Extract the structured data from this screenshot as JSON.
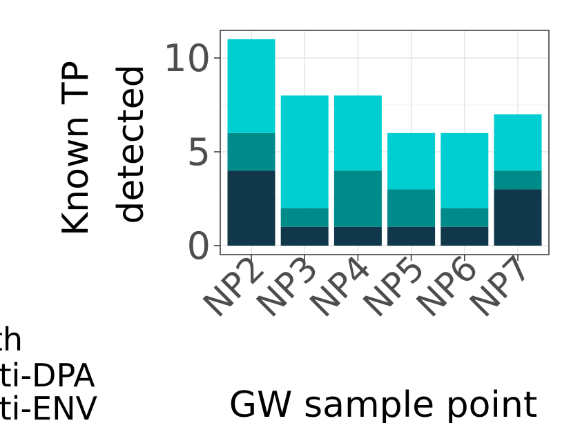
{
  "chart_data": {
    "type": "bar",
    "stacked": true,
    "categories": [
      "NP2",
      "NP3",
      "NP4",
      "NP5",
      "NP6",
      "NP7"
    ],
    "series": [
      {
        "name": "...th",
        "color": "#10384a",
        "values": [
          4,
          1,
          1,
          1,
          1,
          3
        ]
      },
      {
        "name": "...lti-DPA",
        "color": "#008b8b",
        "values": [
          2,
          1,
          3,
          2,
          1,
          1
        ]
      },
      {
        "name": "...lti-ENV",
        "color": "#00ced1",
        "values": [
          5,
          6,
          4,
          3,
          4,
          3
        ]
      }
    ],
    "xlabel": "GW sample point",
    "ylabel_lines": [
      "Known TP",
      "detected"
    ],
    "y_ticks": [
      0,
      5,
      10
    ],
    "ylim": [
      0,
      11.7
    ],
    "grid": true,
    "legend_position": "left, clipped"
  }
}
